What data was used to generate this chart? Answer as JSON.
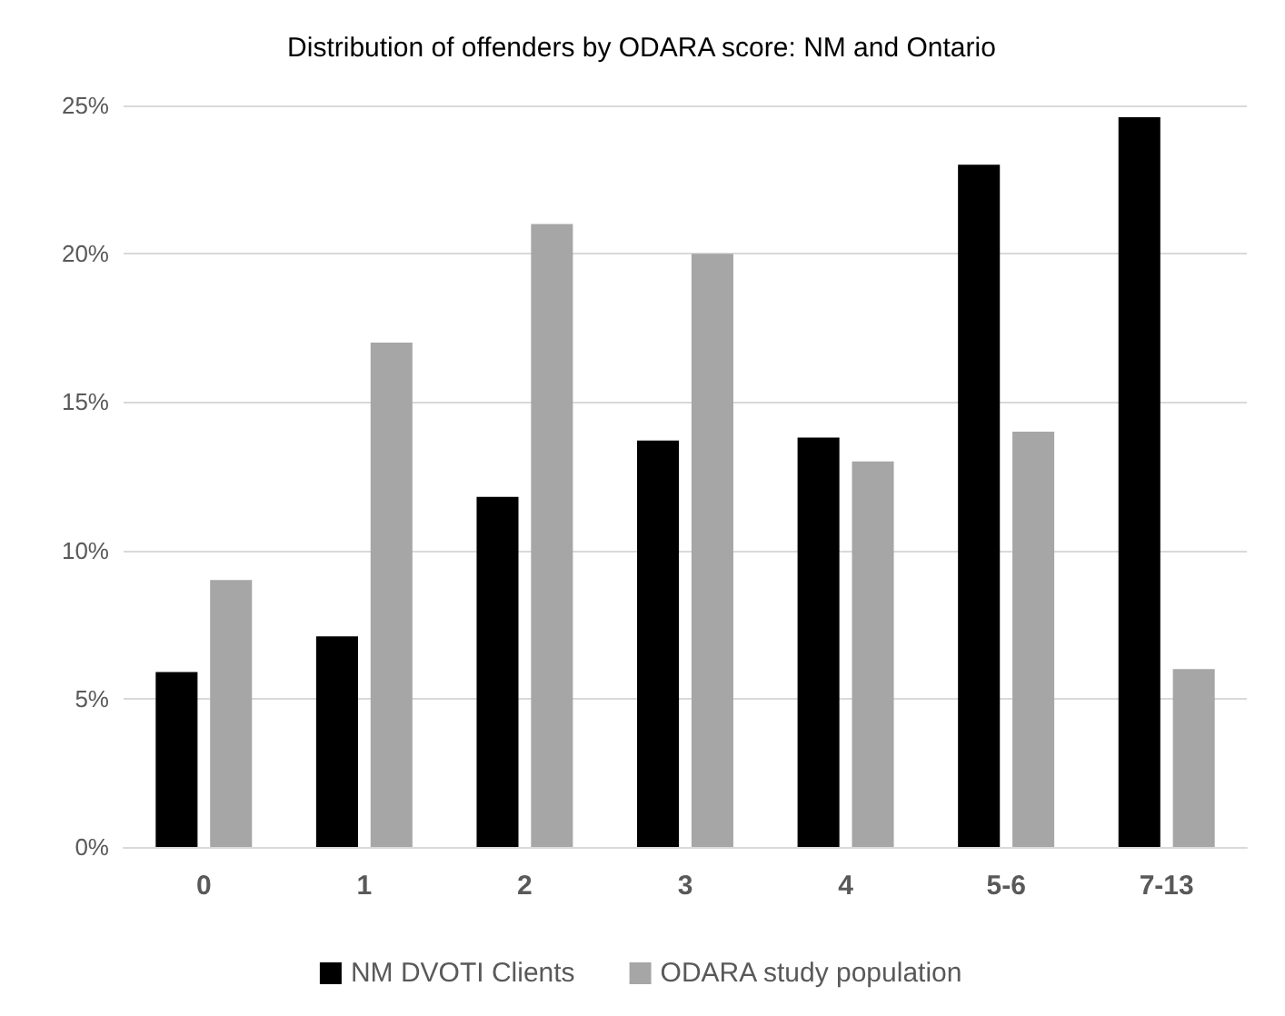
{
  "chart_data": {
    "type": "bar",
    "title": "Distribution of offenders by ODARA score: NM and Ontario",
    "categories": [
      "0",
      "1",
      "2",
      "3",
      "4",
      "5-6",
      "7-13"
    ],
    "series": [
      {
        "name": "NM DVOTI Clients",
        "color": "#000000",
        "values": [
          5.9,
          7.1,
          11.8,
          13.7,
          13.8,
          23.0,
          24.6
        ]
      },
      {
        "name": "ODARA study population",
        "color": "#a6a6a6",
        "values": [
          9,
          17,
          21,
          20,
          13,
          14,
          6
        ]
      }
    ],
    "ylim": [
      0,
      25
    ],
    "yticks": [
      {
        "value": 0,
        "label": "0%"
      },
      {
        "value": 5,
        "label": "5%"
      },
      {
        "value": 10,
        "label": "10%"
      },
      {
        "value": 15,
        "label": "15%"
      },
      {
        "value": 20,
        "label": "20%"
      },
      {
        "value": 25,
        "label": "25%"
      }
    ],
    "grid": "y",
    "legend": "bottom"
  }
}
